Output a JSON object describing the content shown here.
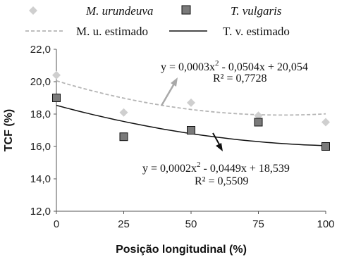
{
  "chart_data": {
    "type": "scatter",
    "xlabel": "Posição longitudinal (%)",
    "ylabel": "TCF (%)",
    "x_ticks": [
      "0",
      "25",
      "50",
      "75",
      "100"
    ],
    "y_ticks": [
      "12,0",
      "14,0",
      "16,0",
      "18,0",
      "20,0",
      "22,0"
    ],
    "xlim": [
      0,
      100
    ],
    "ylim": [
      12,
      22
    ],
    "grid": false,
    "legend_placement": "top",
    "series": [
      {
        "name": "M. urundeuva",
        "marker": "diamond",
        "color": "#cfcfcf",
        "x": [
          0,
          25,
          50,
          75,
          100
        ],
        "y": [
          20.4,
          18.1,
          18.7,
          17.9,
          17.5
        ]
      },
      {
        "name": "T. vulgaris",
        "marker": "square",
        "color": "#7a7a7a",
        "x": [
          0,
          25,
          50,
          75,
          100
        ],
        "y": [
          19.0,
          16.6,
          17.0,
          17.5,
          16.0
        ]
      }
    ],
    "fits": [
      {
        "name": "M. u. estimado",
        "style": "dashed",
        "color": "#b5b5b5",
        "coefficients": {
          "a": 0.0003,
          "b": -0.0504,
          "c": 20.054
        },
        "equation": "y = 0,0003x",
        "equation_sup": "2",
        "equation_rest": " - 0,0504x + 20,054",
        "r2": "R² = 0,7728"
      },
      {
        "name": "T. v. estimado",
        "style": "solid",
        "color": "#111111",
        "coefficients": {
          "a": 0.0002,
          "b": -0.0449,
          "c": 18.539
        },
        "equation": "y = 0,0002x",
        "equation_sup": "2",
        "equation_rest": " - 0,0449x + 18,539",
        "r2": "R² = 0,5509"
      }
    ]
  }
}
